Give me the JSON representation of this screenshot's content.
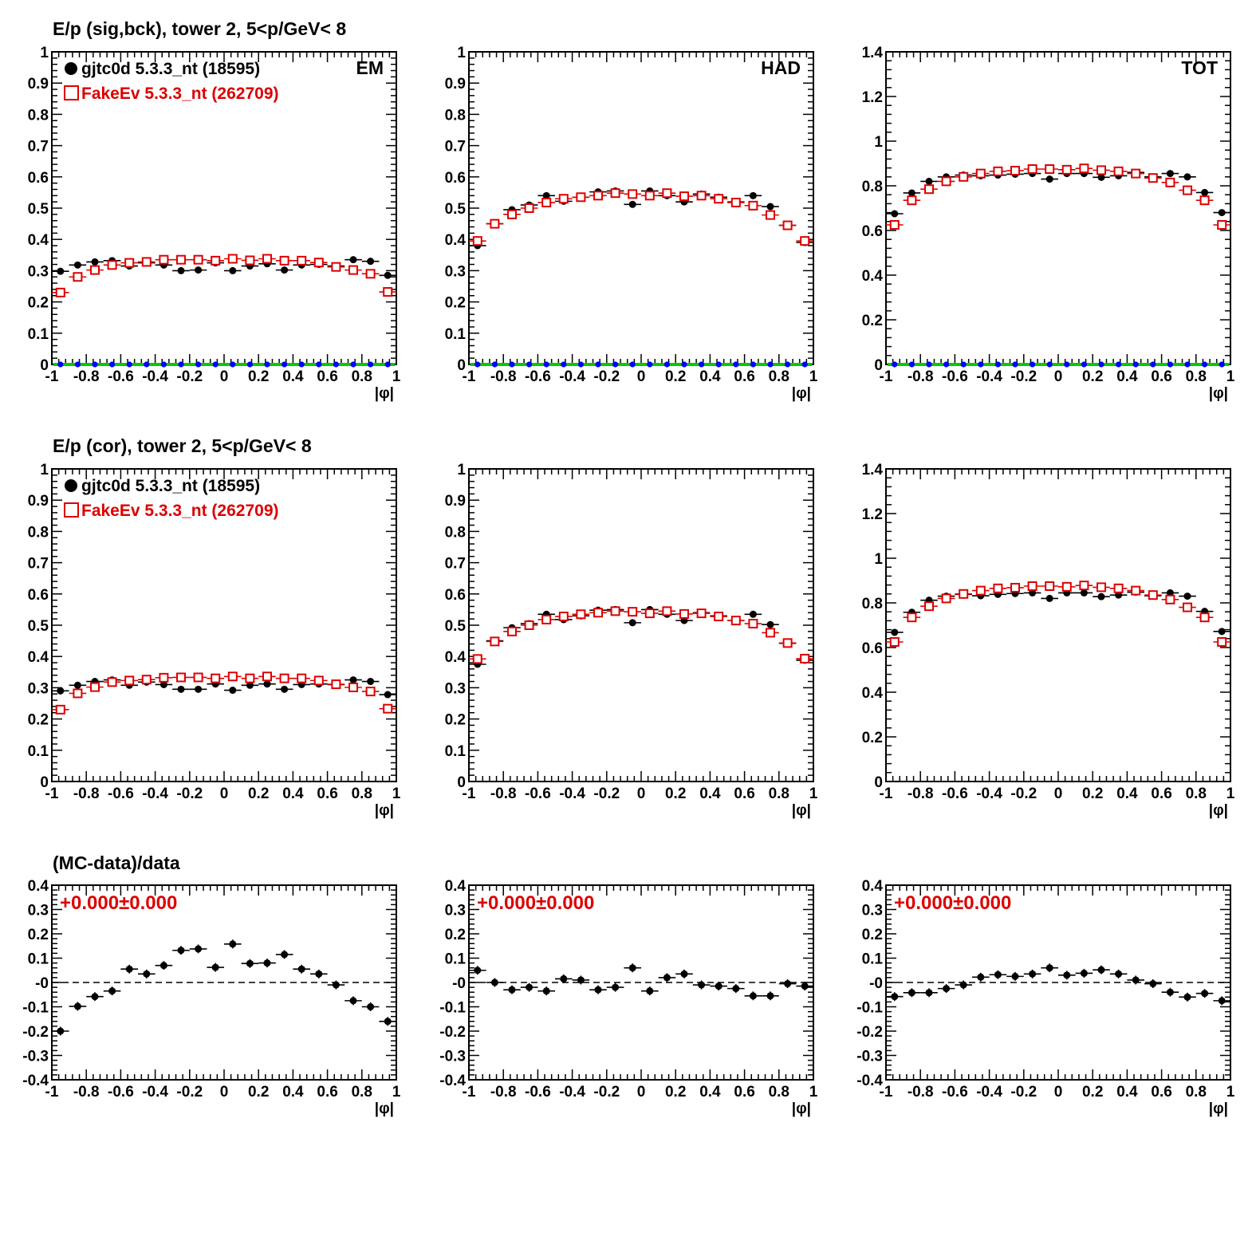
{
  "colors": {
    "sig": "#000000",
    "bck": "#dd0000",
    "blue": "#0000ff",
    "green": "#00cc00",
    "axis": "#000000"
  },
  "rows": [
    {
      "title": "E/p (sig,bck), tower 2,  5<p/GeV< 8",
      "legend": {
        "sig": "gjtc0d 5.3.3_nt (18595)",
        "bck": "FakeEv 5.3.3_nt (262709)"
      }
    },
    {
      "title": "E/p (cor), tower 2,  5<p/GeV< 8",
      "legend": {
        "sig": "gjtc0d 5.3.3_nt (18595)",
        "bck": "FakeEv 5.3.3_nt (262709)"
      }
    },
    {
      "title": "(MC-data)/data",
      "fit_text": "+0.000±0.000"
    }
  ],
  "x_tick_labels": [
    "-1",
    "-0.8",
    "-0.6",
    "-0.4",
    "-0.2",
    "0",
    "0.2",
    "0.4",
    "0.6",
    "0.8",
    "1"
  ],
  "y_tick_sets": {
    "unit": [
      "0",
      "0.1",
      "0.2",
      "0.3",
      "0.4",
      "0.5",
      "0.6",
      "0.7",
      "0.8",
      "0.9",
      "1"
    ],
    "tot": [
      "0",
      "0.2",
      "0.4",
      "0.6",
      "0.8",
      "1",
      "1.2",
      "1.4"
    ],
    "ratio": [
      "-0.4",
      "-0.3",
      "-0.2",
      "-0.1",
      "-0",
      "0.1",
      "0.2",
      "0.3",
      "0.4"
    ]
  },
  "chart_data": [
    {
      "type": "scatter",
      "panel": "sigbck-EM",
      "label": "EM",
      "xlabel": "|φ|",
      "xlim": [
        -1,
        1
      ],
      "ylim": [
        0,
        1
      ],
      "x": [
        -0.95,
        -0.85,
        -0.75,
        -0.65,
        -0.55,
        -0.45,
        -0.35,
        -0.25,
        -0.15,
        -0.05,
        0.05,
        0.15,
        0.25,
        0.35,
        0.45,
        0.55,
        0.65,
        0.75,
        0.85,
        0.95
      ],
      "series": [
        {
          "name": "gjtc0d 5.3.3_nt (18595)",
          "marker": "filled-circle",
          "values": [
            0.298,
            0.318,
            0.328,
            0.332,
            0.315,
            0.325,
            0.318,
            0.3,
            0.302,
            0.325,
            0.3,
            0.315,
            0.322,
            0.302,
            0.318,
            0.32,
            0.315,
            0.335,
            0.33,
            0.285
          ]
        },
        {
          "name": "FakeEv 5.3.3_nt (262709)",
          "marker": "open-square",
          "values": [
            0.23,
            0.28,
            0.302,
            0.318,
            0.325,
            0.328,
            0.335,
            0.335,
            0.335,
            0.332,
            0.338,
            0.333,
            0.338,
            0.332,
            0.332,
            0.326,
            0.312,
            0.302,
            0.29,
            0.232
          ]
        },
        {
          "marker": "blue-circle",
          "values": [
            0,
            0,
            0,
            0,
            0,
            0,
            0,
            0,
            0,
            0,
            0,
            0,
            0,
            0,
            0,
            0,
            0,
            0,
            0,
            0
          ]
        }
      ]
    },
    {
      "type": "scatter",
      "panel": "sigbck-HAD",
      "label": "HAD",
      "xlabel": "|φ|",
      "xlim": [
        -1,
        1
      ],
      "ylim": [
        0,
        1
      ],
      "x": [
        -0.95,
        -0.85,
        -0.75,
        -0.65,
        -0.55,
        -0.45,
        -0.35,
        -0.25,
        -0.15,
        -0.05,
        0.05,
        0.15,
        0.25,
        0.35,
        0.45,
        0.55,
        0.65,
        0.75,
        0.85,
        0.95
      ],
      "series": [
        {
          "name": "gjtc0d 5.3.3_nt (18595)",
          "marker": "filled-circle",
          "values": [
            0.38,
            0.45,
            0.495,
            0.51,
            0.54,
            0.522,
            0.535,
            0.552,
            0.555,
            0.512,
            0.555,
            0.54,
            0.52,
            0.545,
            0.535,
            0.52,
            0.54,
            0.505,
            0.445,
            0.39
          ]
        },
        {
          "name": "FakeEv 5.3.3_nt (262709)",
          "marker": "open-square",
          "values": [
            0.395,
            0.45,
            0.48,
            0.5,
            0.518,
            0.53,
            0.535,
            0.54,
            0.548,
            0.545,
            0.54,
            0.548,
            0.538,
            0.54,
            0.53,
            0.518,
            0.508,
            0.478,
            0.445,
            0.395
          ]
        },
        {
          "marker": "blue-circle",
          "values": [
            0,
            0,
            0,
            0,
            0,
            0,
            0,
            0,
            0,
            0,
            0,
            0,
            0,
            0,
            0,
            0,
            0,
            0,
            0,
            0
          ]
        }
      ]
    },
    {
      "type": "scatter",
      "panel": "sigbck-TOT",
      "label": "TOT",
      "xlabel": "|φ|",
      "xlim": [
        -1,
        1
      ],
      "ylim": [
        0,
        1.4
      ],
      "x": [
        -0.95,
        -0.85,
        -0.75,
        -0.65,
        -0.55,
        -0.45,
        -0.35,
        -0.25,
        -0.15,
        -0.05,
        0.05,
        0.15,
        0.25,
        0.35,
        0.45,
        0.55,
        0.65,
        0.75,
        0.85,
        0.95
      ],
      "series": [
        {
          "name": "gjtc0d 5.3.3_nt (18595)",
          "marker": "filled-circle",
          "values": [
            0.675,
            0.768,
            0.82,
            0.84,
            0.848,
            0.845,
            0.848,
            0.852,
            0.855,
            0.83,
            0.855,
            0.855,
            0.838,
            0.845,
            0.86,
            0.84,
            0.855,
            0.84,
            0.77,
            0.68
          ]
        },
        {
          "name": "FakeEv 5.3.3_nt (262709)",
          "marker": "open-square",
          "values": [
            0.625,
            0.735,
            0.785,
            0.82,
            0.84,
            0.855,
            0.865,
            0.868,
            0.875,
            0.875,
            0.872,
            0.878,
            0.87,
            0.865,
            0.855,
            0.835,
            0.815,
            0.78,
            0.735,
            0.625
          ]
        },
        {
          "marker": "blue-circle",
          "values": [
            0,
            0,
            0,
            0,
            0,
            0,
            0,
            0,
            0,
            0,
            0,
            0,
            0,
            0,
            0,
            0,
            0,
            0,
            0,
            0
          ]
        }
      ]
    },
    {
      "type": "scatter",
      "panel": "cor-EM",
      "xlabel": "|φ|",
      "xlim": [
        -1,
        1
      ],
      "ylim": [
        0,
        1
      ],
      "x": [
        -0.95,
        -0.85,
        -0.75,
        -0.65,
        -0.55,
        -0.45,
        -0.35,
        -0.25,
        -0.15,
        -0.05,
        0.05,
        0.15,
        0.25,
        0.35,
        0.45,
        0.55,
        0.65,
        0.75,
        0.85,
        0.95
      ],
      "series": [
        {
          "name": "gjtc0d 5.3.3_nt (18595)",
          "marker": "filled-circle",
          "values": [
            0.29,
            0.308,
            0.32,
            0.325,
            0.308,
            0.318,
            0.31,
            0.295,
            0.295,
            0.312,
            0.292,
            0.308,
            0.312,
            0.295,
            0.31,
            0.312,
            0.31,
            0.325,
            0.32,
            0.278
          ]
        },
        {
          "name": "FakeEv 5.3.3_nt (262709)",
          "marker": "open-square",
          "values": [
            0.23,
            0.282,
            0.302,
            0.318,
            0.323,
            0.326,
            0.332,
            0.333,
            0.333,
            0.33,
            0.336,
            0.33,
            0.336,
            0.33,
            0.33,
            0.323,
            0.311,
            0.301,
            0.288,
            0.233
          ]
        }
      ]
    },
    {
      "type": "scatter",
      "panel": "cor-HAD",
      "xlabel": "|φ|",
      "xlim": [
        -1,
        1
      ],
      "ylim": [
        0,
        1
      ],
      "x": [
        -0.95,
        -0.85,
        -0.75,
        -0.65,
        -0.55,
        -0.45,
        -0.35,
        -0.25,
        -0.15,
        -0.05,
        0.05,
        0.15,
        0.25,
        0.35,
        0.45,
        0.55,
        0.65,
        0.75,
        0.85,
        0.95
      ],
      "series": [
        {
          "name": "gjtc0d 5.3.3_nt (18595)",
          "marker": "filled-circle",
          "values": [
            0.375,
            0.45,
            0.492,
            0.505,
            0.535,
            0.518,
            0.53,
            0.548,
            0.55,
            0.508,
            0.55,
            0.535,
            0.515,
            0.54,
            0.53,
            0.515,
            0.535,
            0.502,
            0.442,
            0.388
          ]
        },
        {
          "name": "FakeEv 5.3.3_nt (262709)",
          "marker": "open-square",
          "values": [
            0.392,
            0.448,
            0.48,
            0.5,
            0.518,
            0.528,
            0.535,
            0.54,
            0.545,
            0.543,
            0.538,
            0.545,
            0.536,
            0.538,
            0.528,
            0.515,
            0.505,
            0.476,
            0.443,
            0.393
          ]
        }
      ]
    },
    {
      "type": "scatter",
      "panel": "cor-TOT",
      "xlabel": "|φ|",
      "xlim": [
        -1,
        1
      ],
      "ylim": [
        0,
        1.4
      ],
      "x": [
        -0.95,
        -0.85,
        -0.75,
        -0.65,
        -0.55,
        -0.45,
        -0.35,
        -0.25,
        -0.15,
        -0.05,
        0.05,
        0.15,
        0.25,
        0.35,
        0.45,
        0.55,
        0.65,
        0.75,
        0.85,
        0.95
      ],
      "series": [
        {
          "name": "gjtc0d 5.3.3_nt (18595)",
          "marker": "filled-circle",
          "values": [
            0.668,
            0.758,
            0.812,
            0.83,
            0.838,
            0.832,
            0.838,
            0.842,
            0.845,
            0.82,
            0.845,
            0.845,
            0.828,
            0.835,
            0.848,
            0.832,
            0.845,
            0.83,
            0.762,
            0.672
          ]
        },
        {
          "name": "FakeEv 5.3.3_nt (262709)",
          "marker": "open-square",
          "values": [
            0.625,
            0.735,
            0.785,
            0.82,
            0.84,
            0.855,
            0.865,
            0.868,
            0.875,
            0.875,
            0.872,
            0.878,
            0.87,
            0.865,
            0.855,
            0.835,
            0.815,
            0.78,
            0.735,
            0.625
          ]
        }
      ]
    },
    {
      "type": "scatter",
      "panel": "ratio-EM",
      "xlabel": "|φ|",
      "xlim": [
        -1,
        1
      ],
      "ylim": [
        -0.4,
        0.4
      ],
      "x": [
        -0.95,
        -0.85,
        -0.75,
        -0.65,
        -0.55,
        -0.45,
        -0.35,
        -0.25,
        -0.15,
        -0.05,
        0.05,
        0.15,
        0.25,
        0.35,
        0.45,
        0.55,
        0.65,
        0.75,
        0.85,
        0.95
      ],
      "series": [
        {
          "name": "(MC-data)/data",
          "marker": "filled-circle",
          "values": [
            -0.2,
            -0.098,
            -0.058,
            -0.035,
            0.055,
            0.035,
            0.07,
            0.132,
            0.138,
            0.062,
            0.158,
            0.078,
            0.08,
            0.115,
            0.055,
            0.035,
            -0.01,
            -0.075,
            -0.1,
            -0.16
          ]
        }
      ]
    },
    {
      "type": "scatter",
      "panel": "ratio-HAD",
      "xlabel": "|φ|",
      "xlim": [
        -1,
        1
      ],
      "ylim": [
        -0.4,
        0.4
      ],
      "x": [
        -0.95,
        -0.85,
        -0.75,
        -0.65,
        -0.55,
        -0.45,
        -0.35,
        -0.25,
        -0.15,
        -0.05,
        0.05,
        0.15,
        0.25,
        0.35,
        0.45,
        0.55,
        0.65,
        0.75,
        0.85,
        0.95
      ],
      "series": [
        {
          "name": "(MC-data)/data",
          "marker": "filled-circle",
          "values": [
            0.05,
            0.0,
            -0.03,
            -0.02,
            -0.035,
            0.015,
            0.01,
            -0.03,
            -0.02,
            0.06,
            -0.035,
            0.02,
            0.035,
            -0.01,
            -0.015,
            -0.025,
            -0.055,
            -0.055,
            -0.005,
            -0.015
          ]
        }
      ]
    },
    {
      "type": "scatter",
      "panel": "ratio-TOT",
      "xlabel": "|φ|",
      "xlim": [
        -1,
        1
      ],
      "ylim": [
        -0.4,
        0.4
      ],
      "x": [
        -0.95,
        -0.85,
        -0.75,
        -0.65,
        -0.55,
        -0.45,
        -0.35,
        -0.25,
        -0.15,
        -0.05,
        0.05,
        0.15,
        0.25,
        0.35,
        0.45,
        0.55,
        0.65,
        0.75,
        0.85,
        0.95
      ],
      "series": [
        {
          "name": "(MC-data)/data",
          "marker": "filled-circle",
          "values": [
            -0.058,
            -0.042,
            -0.042,
            -0.025,
            -0.01,
            0.022,
            0.032,
            0.025,
            0.035,
            0.06,
            0.03,
            0.038,
            0.052,
            0.035,
            0.01,
            -0.005,
            -0.04,
            -0.06,
            -0.045,
            -0.075
          ]
        }
      ]
    }
  ]
}
